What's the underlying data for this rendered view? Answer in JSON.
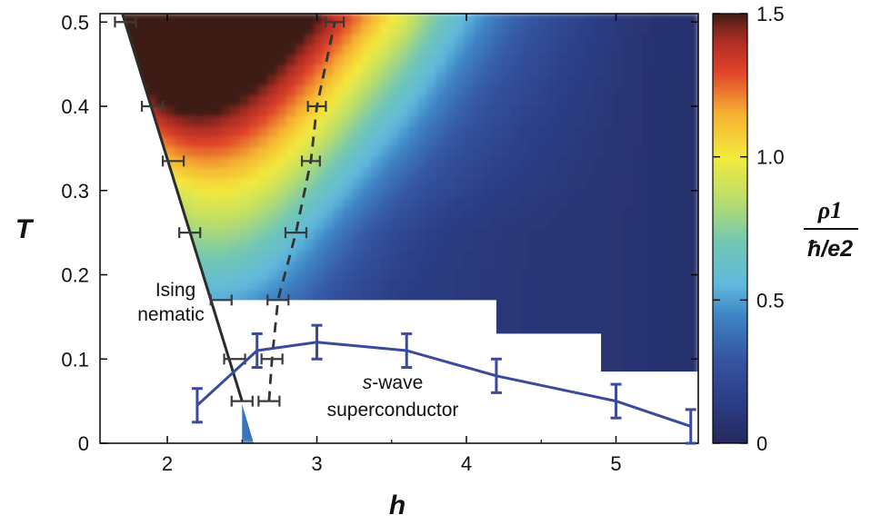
{
  "chart_data": {
    "type": "heatmap",
    "title": "",
    "xlabel": "h",
    "ylabel": "T",
    "xlim": [
      1.55,
      5.55
    ],
    "ylim": [
      0,
      0.51
    ],
    "x_ticks": [
      "2",
      "3",
      "4",
      "5"
    ],
    "y_ticks": [
      "0",
      "0.1",
      "0.2",
      "0.3",
      "0.4",
      "0.5"
    ],
    "colorbar": {
      "label_numerator": "ρ1",
      "label_denominator": "ħ/e2",
      "range": [
        0,
        1.5
      ],
      "ticks": [
        "0",
        "0.5",
        "1.0",
        "1.5"
      ],
      "stops": [
        {
          "v": 0.0,
          "color": "#26295e"
        },
        {
          "v": 0.15,
          "color": "#2b3e86"
        },
        {
          "v": 0.3,
          "color": "#3556a3"
        },
        {
          "v": 0.45,
          "color": "#3f86c6"
        },
        {
          "v": 0.55,
          "color": "#5fb8dd"
        },
        {
          "v": 0.7,
          "color": "#72c7b4"
        },
        {
          "v": 0.85,
          "color": "#b9de6a"
        },
        {
          "v": 1.0,
          "color": "#f4ea3d"
        },
        {
          "v": 1.15,
          "color": "#f5b131"
        },
        {
          "v": 1.3,
          "color": "#e0412a"
        },
        {
          "v": 1.42,
          "color": "#a62a23"
        },
        {
          "v": 1.5,
          "color": "#3d1c14"
        }
      ]
    },
    "ising_nematic_boundary": {
      "line": [
        {
          "h": 1.7,
          "T": 0.51
        },
        {
          "h": 2.5,
          "T": 0.05
        }
      ],
      "points": [
        {
          "h": 1.72,
          "T": 0.5,
          "dh": 0.07
        },
        {
          "h": 1.9,
          "T": 0.4,
          "dh": 0.07
        },
        {
          "h": 2.04,
          "T": 0.335,
          "dh": 0.07
        },
        {
          "h": 2.15,
          "T": 0.25,
          "dh": 0.07
        },
        {
          "h": 2.36,
          "T": 0.17,
          "dh": 0.07
        },
        {
          "h": 2.45,
          "T": 0.1,
          "dh": 0.07
        },
        {
          "h": 2.5,
          "T": 0.05,
          "dh": 0.07
        }
      ]
    },
    "dashed_crossover": {
      "points": [
        {
          "h": 2.68,
          "T": 0.05,
          "dh": 0.07
        },
        {
          "h": 2.7,
          "T": 0.1,
          "dh": 0.07
        },
        {
          "h": 2.74,
          "T": 0.17,
          "dh": 0.07
        },
        {
          "h": 2.86,
          "T": 0.25,
          "dh": 0.07
        },
        {
          "h": 2.96,
          "T": 0.335,
          "dh": 0.06
        },
        {
          "h": 3.0,
          "T": 0.4,
          "dh": 0.06
        },
        {
          "h": 3.12,
          "T": 0.5,
          "dh": 0.06
        }
      ]
    },
    "s_wave_superconductor": {
      "points": [
        {
          "h": 2.2,
          "T": 0.045,
          "err": 0.02
        },
        {
          "h": 2.6,
          "T": 0.11,
          "err": 0.02
        },
        {
          "h": 3.0,
          "T": 0.12,
          "err": 0.02
        },
        {
          "h": 3.6,
          "T": 0.11,
          "err": 0.02
        },
        {
          "h": 4.2,
          "T": 0.08,
          "err": 0.02
        },
        {
          "h": 5.0,
          "T": 0.05,
          "err": 0.02
        },
        {
          "h": 5.5,
          "T": 0.02,
          "err": 0.02
        }
      ]
    },
    "data_region_lower_boundary": [
      {
        "h_from": 2.45,
        "h_to": 4.2,
        "T": 0.17
      },
      {
        "h_from": 4.2,
        "h_to": 4.9,
        "T": 0.13
      },
      {
        "h_from": 4.9,
        "h_to": 5.5,
        "T": 0.085
      }
    ],
    "annotations": {
      "ising_line1": "Ising",
      "ising_line2": "nematic",
      "sc_prefix": "s",
      "sc_suffix": "-wave",
      "sc_line2": "superconductor"
    }
  }
}
